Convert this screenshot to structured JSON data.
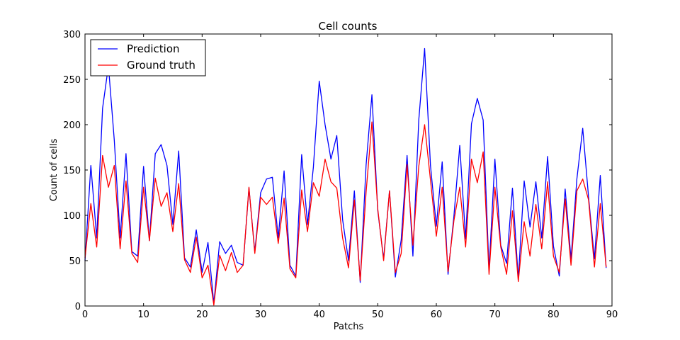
{
  "chart_data": {
    "type": "line",
    "title": "Cell counts",
    "xlabel": "Patchs",
    "ylabel": "Count of cells",
    "xlim": [
      0,
      90
    ],
    "ylim": [
      0,
      300
    ],
    "xticks": [
      "0",
      "10",
      "20",
      "30",
      "40",
      "50",
      "60",
      "70",
      "80",
      "90"
    ],
    "yticks": [
      "0",
      "50",
      "100",
      "150",
      "200",
      "250",
      "300"
    ],
    "grid": false,
    "legend_position": "top-left",
    "x": [
      0,
      1,
      2,
      3,
      4,
      5,
      6,
      7,
      8,
      9,
      10,
      11,
      12,
      13,
      14,
      15,
      16,
      17,
      18,
      19,
      20,
      21,
      22,
      23,
      24,
      25,
      26,
      27,
      28,
      29,
      30,
      31,
      32,
      33,
      34,
      35,
      36,
      37,
      38,
      39,
      40,
      41,
      42,
      43,
      44,
      45,
      46,
      47,
      48,
      49,
      50,
      51,
      52,
      53,
      54,
      55,
      56,
      57,
      58,
      59,
      60,
      61,
      62,
      63,
      64,
      65,
      66,
      67,
      68,
      69,
      70,
      71,
      72,
      73,
      74,
      75,
      76,
      77,
      78,
      79,
      80,
      81,
      82,
      83,
      84,
      85,
      86,
      87,
      88,
      89
    ],
    "series": [
      {
        "name": "Prediction",
        "color": "#0000ff",
        "values": [
          50,
          155,
          75,
          218,
          265,
          183,
          75,
          168,
          60,
          55,
          154,
          72,
          168,
          178,
          155,
          90,
          171,
          53,
          43,
          84,
          37,
          70,
          3,
          71,
          58,
          67,
          48,
          45,
          130,
          60,
          125,
          140,
          142,
          75,
          149,
          45,
          33,
          167,
          90,
          153,
          248,
          200,
          162,
          188,
          95,
          50,
          127,
          26,
          155,
          233,
          105,
          52,
          127,
          32,
          73,
          166,
          55,
          205,
          284,
          155,
          88,
          159,
          35,
          99,
          177,
          74,
          201,
          229,
          205,
          40,
          162,
          67,
          47,
          130,
          30,
          138,
          87,
          137,
          75,
          165,
          66,
          33,
          129,
          52,
          140,
          196,
          120,
          52,
          144,
          42
        ]
      },
      {
        "name": "Ground truth",
        "color": "#ff0000",
        "values": [
          53,
          113,
          65,
          166,
          131,
          155,
          63,
          138,
          58,
          48,
          131,
          72,
          141,
          110,
          125,
          82,
          135,
          51,
          37,
          76,
          31,
          45,
          1,
          56,
          39,
          59,
          37,
          45,
          131,
          58,
          120,
          112,
          120,
          69,
          119,
          41,
          31,
          128,
          82,
          136,
          121,
          162,
          137,
          130,
          75,
          42,
          117,
          28,
          125,
          203,
          107,
          50,
          127,
          37,
          58,
          156,
          67,
          154,
          200,
          139,
          77,
          131,
          38,
          94,
          131,
          65,
          162,
          136,
          170,
          35,
          131,
          65,
          35,
          105,
          27,
          93,
          55,
          112,
          63,
          137,
          55,
          37,
          118,
          45,
          127,
          140,
          117,
          43,
          113,
          43
        ]
      }
    ]
  }
}
